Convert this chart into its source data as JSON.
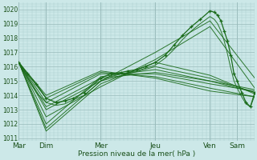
{
  "bg_color": "#cce8e8",
  "grid_major_color": "#99bbbb",
  "grid_minor_color": "#aacccc",
  "line_color": "#1a6b1a",
  "ylabel_text": "Pression niveau de la mer( hPa )",
  "day_labels": [
    "Mar",
    "Dim",
    "Mer",
    "Jeu",
    "Ven",
    "Sam"
  ],
  "day_positions": [
    0.0,
    0.125,
    0.375,
    0.625,
    0.875,
    1.0
  ],
  "ylim": [
    1010.8,
    1020.5
  ],
  "yticks": [
    1011,
    1012,
    1013,
    1014,
    1015,
    1016,
    1017,
    1018,
    1019,
    1020
  ],
  "xlim": [
    0.0,
    1.08
  ],
  "ensemble_lines": [
    {
      "pts_x": [
        0.0,
        0.125,
        0.375,
        0.625,
        0.875,
        1.08
      ],
      "pts_y": [
        1016.3,
        1012.0,
        1015.3,
        1015.8,
        1015.0,
        1014.4
      ]
    },
    {
      "pts_x": [
        0.0,
        0.125,
        0.375,
        0.625,
        0.875,
        1.08
      ],
      "pts_y": [
        1016.3,
        1011.7,
        1015.0,
        1016.0,
        1015.2,
        1014.2
      ]
    },
    {
      "pts_x": [
        0.0,
        0.125,
        0.375,
        0.625,
        0.875,
        1.08
      ],
      "pts_y": [
        1016.3,
        1011.5,
        1014.8,
        1016.3,
        1015.4,
        1014.1
      ]
    },
    {
      "pts_x": [
        0.0,
        0.125,
        0.375,
        0.625,
        0.875,
        1.08
      ],
      "pts_y": [
        1016.3,
        1013.5,
        1015.5,
        1015.5,
        1014.8,
        1014.3
      ]
    },
    {
      "pts_x": [
        0.0,
        0.125,
        0.375,
        0.625,
        0.875,
        1.08
      ],
      "pts_y": [
        1016.3,
        1013.8,
        1015.6,
        1015.3,
        1014.5,
        1013.9
      ]
    },
    {
      "pts_x": [
        0.0,
        0.125,
        0.375,
        0.625,
        0.875,
        1.08
      ],
      "pts_y": [
        1016.3,
        1014.0,
        1015.7,
        1015.2,
        1014.3,
        1013.9
      ]
    },
    {
      "pts_x": [
        0.0,
        0.125,
        0.375,
        0.625,
        0.875,
        1.08
      ],
      "pts_y": [
        1016.3,
        1013.2,
        1015.2,
        1015.6,
        1015.0,
        1014.2
      ]
    },
    {
      "pts_x": [
        0.0,
        0.125,
        0.375,
        0.625,
        0.875,
        1.08
      ],
      "pts_y": [
        1016.3,
        1012.5,
        1014.6,
        1016.5,
        1018.8,
        1014.5
      ]
    },
    {
      "pts_x": [
        0.0,
        0.125,
        0.375,
        0.625,
        0.875,
        1.08
      ],
      "pts_y": [
        1016.3,
        1013.0,
        1015.0,
        1017.0,
        1019.2,
        1015.2
      ]
    }
  ],
  "main_line_pts": {
    "x": [
      0.0,
      0.04,
      0.08,
      0.125,
      0.17,
      0.21,
      0.25,
      0.3,
      0.375,
      0.42,
      0.47,
      0.5,
      0.54,
      0.58,
      0.625,
      0.67,
      0.71,
      0.75,
      0.79,
      0.83,
      0.875,
      0.895,
      0.91,
      0.925,
      0.94,
      0.955,
      0.97,
      0.985,
      1.0,
      1.02,
      1.04,
      1.06,
      1.08
    ],
    "y": [
      1016.3,
      1015.5,
      1014.8,
      1013.8,
      1013.5,
      1013.6,
      1013.8,
      1014.2,
      1015.2,
      1015.5,
      1015.6,
      1015.7,
      1015.8,
      1016.0,
      1016.3,
      1016.8,
      1017.5,
      1018.2,
      1018.8,
      1019.3,
      1019.9,
      1019.8,
      1019.6,
      1019.2,
      1018.5,
      1017.8,
      1016.8,
      1015.5,
      1015.0,
      1014.2,
      1013.5,
      1013.2,
      1014.2
    ]
  },
  "smooth_line_pts": {
    "x": [
      0.0,
      0.04,
      0.08,
      0.125,
      0.17,
      0.21,
      0.25,
      0.3,
      0.375,
      0.42,
      0.47,
      0.5,
      0.54,
      0.58,
      0.625,
      0.67,
      0.71,
      0.75,
      0.79,
      0.83,
      0.875,
      0.895,
      0.91,
      0.925,
      0.94,
      0.955,
      0.97,
      0.985,
      1.0,
      1.02,
      1.04,
      1.06,
      1.08
    ],
    "y": [
      1016.3,
      1015.2,
      1014.2,
      1013.5,
      1013.3,
      1013.4,
      1013.7,
      1014.0,
      1015.0,
      1015.3,
      1015.5,
      1015.6,
      1015.7,
      1015.9,
      1016.1,
      1016.6,
      1017.2,
      1017.9,
      1018.5,
      1019.0,
      1019.5,
      1019.3,
      1019.0,
      1018.5,
      1017.8,
      1016.9,
      1015.9,
      1015.0,
      1014.5,
      1013.9,
      1013.4,
      1013.2,
      1014.0
    ]
  }
}
